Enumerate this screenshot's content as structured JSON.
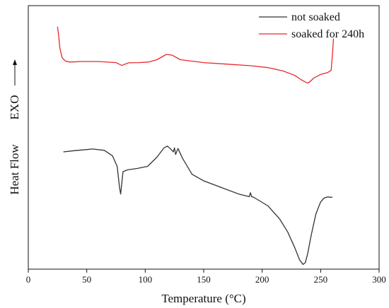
{
  "chart_data": {
    "type": "line",
    "xlabel": "Temperature (°C)",
    "ylabel": "Heat Flow",
    "exo_label": "EXO",
    "xlim": [
      0,
      300
    ],
    "xticks": [
      0,
      50,
      100,
      150,
      200,
      250,
      300
    ],
    "ylim": [
      0,
      100
    ],
    "y_ticks_labeled": false,
    "grid": false,
    "legend_position": "top-right",
    "series": [
      {
        "name": "not soaked",
        "color": "#333333",
        "x": [
          30,
          40,
          55,
          65,
          72,
          76,
          78,
          79,
          81,
          85,
          93,
          102,
          110,
          116,
          119,
          122,
          124,
          125,
          126,
          128,
          132,
          140,
          150,
          165,
          180,
          189,
          190,
          191,
          193,
          205,
          215,
          222,
          228,
          232,
          235,
          237,
          239,
          242,
          246,
          250,
          253,
          256,
          258,
          260
        ],
        "y": [
          44.5,
          45.0,
          45.6,
          45.1,
          43.0,
          39.0,
          31.0,
          28.5,
          37.0,
          37.7,
          38.2,
          39.0,
          42.5,
          46.0,
          46.7,
          45.5,
          44.5,
          46.0,
          43.5,
          45.8,
          42.0,
          36.0,
          33.5,
          31.0,
          28.5,
          27.5,
          29.0,
          27.5,
          27.2,
          24.0,
          19.0,
          14.0,
          8.0,
          3.5,
          1.8,
          2.5,
          6.0,
          13.0,
          21.0,
          25.5,
          27.0,
          27.4,
          27.3,
          27.3
        ]
      },
      {
        "name": "soaked for 240h",
        "color": "#e8282b",
        "x": [
          25,
          26,
          27,
          29,
          32,
          36,
          45,
          60,
          75,
          80,
          82,
          86,
          95,
          103,
          110,
          118,
          123,
          130,
          150,
          170,
          190,
          205,
          218,
          228,
          233,
          237,
          239,
          241,
          244,
          250,
          256,
          259,
          260,
          261
        ],
        "y": [
          92.0,
          88.5,
          84.0,
          80.2,
          78.9,
          78.6,
          78.8,
          78.8,
          78.4,
          77.3,
          77.7,
          78.3,
          78.4,
          78.6,
          79.5,
          81.5,
          81.2,
          79.5,
          78.4,
          77.8,
          77.2,
          76.5,
          75.2,
          73.5,
          72.0,
          71.0,
          70.6,
          71.2,
          72.5,
          73.9,
          74.6,
          75.5,
          81.0,
          87.5
        ]
      }
    ]
  }
}
